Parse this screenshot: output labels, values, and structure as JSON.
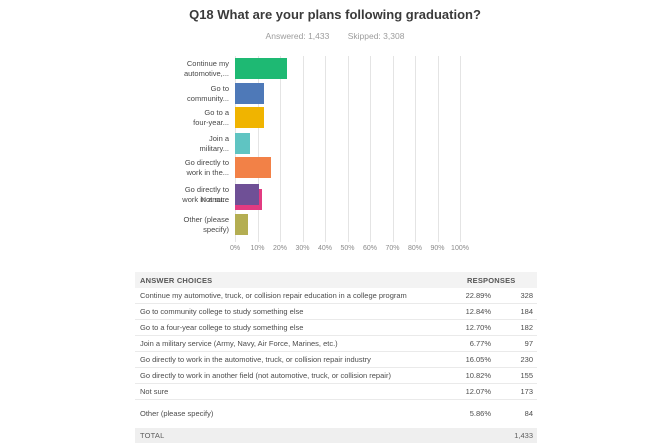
{
  "header": {
    "title": "Q18 What are your plans following graduation?",
    "answered": "Answered: 1,433",
    "skipped": "Skipped: 3,308"
  },
  "chart_data": {
    "type": "bar",
    "orientation": "horizontal",
    "title": "Q18 What are your plans following graduation?",
    "xlabel": "",
    "ylabel": "",
    "xlim": [
      0,
      100
    ],
    "grid": true,
    "x_ticks": [
      "0%",
      "10%",
      "20%",
      "30%",
      "40%",
      "50%",
      "60%",
      "70%",
      "80%",
      "90%",
      "100%"
    ],
    "categories": [
      "Continue my automotive, truck, or collision repair education in a college program",
      "Go to community college to study something else",
      "Go to a four-year college to study something else",
      "Join a military service (Army, Navy, Air Force, Marines, etc.)",
      "Go directly to work in the automotive, truck, or collision repair industry",
      "Go directly to work in another field (not automotive, truck, or collision repair)",
      "Not sure",
      "Other (please specify)"
    ],
    "categories_truncated": [
      [
        "Continue my",
        "automotive,..."
      ],
      [
        "Go to",
        "community..."
      ],
      [
        "Go to a",
        "four-year..."
      ],
      [
        "Join a",
        "military..."
      ],
      [
        "Go directly to",
        "work in the..."
      ],
      [
        "Go directly to",
        "work in anot..."
      ],
      [
        "Not sure"
      ],
      [
        "Other (please",
        "specify)"
      ]
    ],
    "values": [
      22.89,
      12.84,
      12.7,
      6.77,
      16.05,
      10.82,
      12.07,
      5.86
    ],
    "counts": [
      328,
      184,
      182,
      97,
      230,
      155,
      173,
      84
    ],
    "colors": [
      "#1EB973",
      "#4E79B8",
      "#F0B400",
      "#5FC4C2",
      "#F28147",
      "#6F5096",
      "#E23B81",
      "#B4AE52"
    ]
  },
  "table": {
    "headers": [
      "ANSWER CHOICES",
      "RESPONSES"
    ],
    "rows": [
      {
        "choice": "Continue my automotive, truck, or collision repair education in a college program",
        "percent": "22.89%",
        "count": "328"
      },
      {
        "choice": "Go to community college to study something else",
        "percent": "12.84%",
        "count": "184"
      },
      {
        "choice": "Go to a four-year college to study something else",
        "percent": "12.70%",
        "count": "182"
      },
      {
        "choice": "Join a military service (Army, Navy, Air Force, Marines, etc.)",
        "percent": "6.77%",
        "count": "97"
      },
      {
        "choice": "Go directly to work in the automotive, truck, or collision repair industry",
        "percent": "16.05%",
        "count": "230"
      },
      {
        "choice": "Go directly to work in another field (not automotive, truck, or collision repair)",
        "percent": "10.82%",
        "count": "155"
      },
      {
        "choice": "Not sure",
        "percent": "12.07%",
        "count": "173"
      },
      {
        "choice": "Other (please specify)",
        "percent": "5.86%",
        "count": "84"
      }
    ],
    "total_label": "TOTAL",
    "total_value": "1,433"
  }
}
